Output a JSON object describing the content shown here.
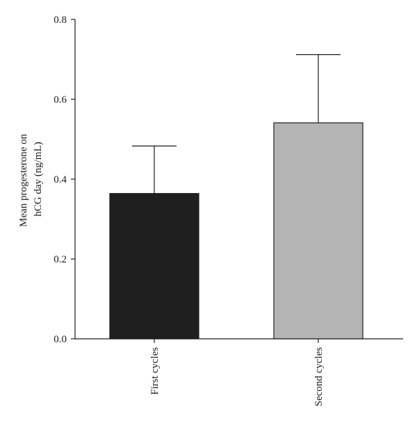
{
  "chart_data": {
    "type": "bar",
    "title": "",
    "xlabel": "",
    "ylabel": [
      "Mean progesterone on",
      "hCG day (ng/mL)"
    ],
    "categories": [
      "First cycles",
      "Second cycles"
    ],
    "values": [
      0.364,
      0.541
    ],
    "error_upper": [
      0.483,
      0.712
    ],
    "bar_colors": [
      "#1f1f1f",
      "#b4b4b4"
    ],
    "ylim": [
      0,
      0.8
    ],
    "yticks": [
      "0.0",
      "0.2",
      "0.4",
      "0.6",
      "0.8"
    ],
    "grid": false,
    "legend": "none"
  }
}
